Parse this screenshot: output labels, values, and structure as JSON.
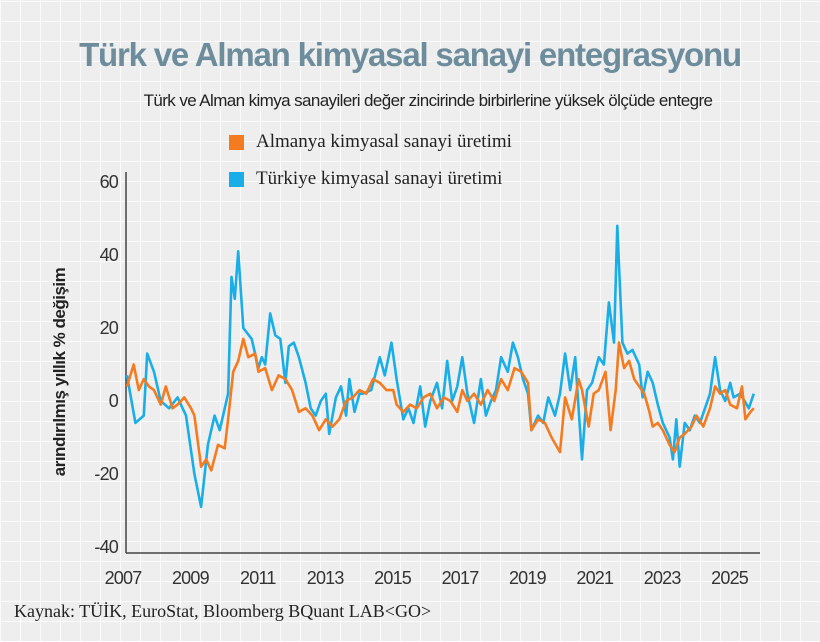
{
  "title": "Türk ve Alman kimyasal sanayi entegrasyonu",
  "subtitle": "Türk ve Alman kimya sanayileri değer zincirinde birbirlerine yüksek ölçüde entegre",
  "source": "Kaynak: TÜİK, EuroStat, Bloomberg BQuant LAB<GO>",
  "chart_data": {
    "type": "line",
    "title": "Türk ve Alman kimyasal sanayi entegrasyonu",
    "ylabel": "arındırılmış yıllık % değişim",
    "xlabel": "",
    "ylim": [
      -40,
      60
    ],
    "xlim": [
      2007,
      2025.6
    ],
    "yticks": [
      "60",
      "40",
      "20",
      "0",
      "-20",
      "-40"
    ],
    "ytick_values": [
      60,
      40,
      20,
      0,
      -20,
      -40
    ],
    "xticks": [
      "2007",
      "2009",
      "2011",
      "2013",
      "2015",
      "2017",
      "2019",
      "2021",
      "2023",
      "2025"
    ],
    "grid": false,
    "legend_position": "top-center",
    "series": [
      {
        "name": "Almanya kimyasal sanayi üretimi",
        "color": "#f47b20",
        "x": [
          2007.0,
          2007.2,
          2007.35,
          2007.5,
          2007.65,
          2007.8,
          2008.0,
          2008.15,
          2008.35,
          2008.5,
          2008.7,
          2008.9,
          2009.0,
          2009.2,
          2009.35,
          2009.5,
          2009.7,
          2009.9,
          2010.0,
          2010.15,
          2010.3,
          2010.45,
          2010.6,
          2010.8,
          2010.9,
          2011.1,
          2011.3,
          2011.5,
          2011.7,
          2011.9,
          2012.1,
          2012.3,
          2012.5,
          2012.7,
          2012.9,
          2013.1,
          2013.3,
          2013.5,
          2013.7,
          2013.9,
          2014.1,
          2014.3,
          2014.5,
          2014.7,
          2014.9,
          2015.0,
          2015.2,
          2015.4,
          2015.6,
          2015.8,
          2016.0,
          2016.2,
          2016.4,
          2016.6,
          2016.8,
          2016.95,
          2017.1,
          2017.3,
          2017.5,
          2017.7,
          2017.9,
          2018.1,
          2018.3,
          2018.5,
          2018.7,
          2018.9,
          2019.0,
          2019.2,
          2019.4,
          2019.6,
          2019.85,
          2020.0,
          2020.2,
          2020.4,
          2020.5,
          2020.7,
          2020.85,
          2021.0,
          2021.2,
          2021.35,
          2021.5,
          2021.6,
          2021.75,
          2021.9,
          2022.05,
          2022.2,
          2022.35,
          2022.5,
          2022.6,
          2022.75,
          2022.9,
          2023.1,
          2023.25,
          2023.4,
          2023.55,
          2023.75,
          2023.9,
          2024.1,
          2024.3,
          2024.45,
          2024.6,
          2024.75,
          2024.9,
          2025.1,
          2025.25,
          2025.35,
          2025.5,
          2025.6
        ],
        "values": [
          4,
          10,
          3,
          6,
          4,
          3,
          -1,
          4,
          -2,
          -1,
          1,
          -2,
          -4,
          -18,
          -16,
          -19,
          -12,
          -13,
          -5,
          8,
          11,
          17,
          12,
          13,
          8,
          9,
          3,
          7,
          6,
          3,
          -3,
          -2,
          -4,
          -8,
          -5,
          -7,
          -5,
          0,
          1,
          3,
          2,
          6,
          5,
          3,
          3,
          -1,
          -3,
          -1,
          -2,
          1,
          2,
          -2,
          1,
          0,
          -3,
          3,
          0,
          2,
          -1,
          3,
          0,
          6,
          3,
          9,
          8,
          5,
          -8,
          -5,
          -6,
          -10,
          -14,
          1,
          -5,
          6,
          3,
          -7,
          2,
          3,
          8,
          -8,
          3,
          16,
          9,
          11,
          6,
          4,
          2,
          -3,
          -7,
          -6,
          -8,
          -12,
          -14,
          -10,
          -9,
          -7,
          -4,
          -7,
          -2,
          4,
          2,
          3,
          -1,
          -2,
          4,
          -5,
          -3,
          -2
        ]
      },
      {
        "name": "Türkiye kimyasal sanayi üretimi",
        "color": "#1aaee8",
        "x": [
          2007.0,
          2007.25,
          2007.5,
          2007.6,
          2007.8,
          2008.0,
          2008.25,
          2008.5,
          2008.75,
          2009.0,
          2009.2,
          2009.4,
          2009.6,
          2009.75,
          2010.0,
          2010.1,
          2010.2,
          2010.3,
          2010.45,
          2010.7,
          2010.9,
          2011.0,
          2011.1,
          2011.25,
          2011.4,
          2011.55,
          2011.7,
          2011.8,
          2011.95,
          2012.1,
          2012.3,
          2012.45,
          2012.6,
          2012.75,
          2012.9,
          2013.0,
          2013.2,
          2013.35,
          2013.5,
          2013.6,
          2013.75,
          2013.9,
          2014.0,
          2014.25,
          2014.5,
          2014.65,
          2014.85,
          2015.0,
          2015.2,
          2015.35,
          2015.5,
          2015.7,
          2015.85,
          2016.0,
          2016.2,
          2016.35,
          2016.5,
          2016.65,
          2016.8,
          2016.95,
          2017.1,
          2017.3,
          2017.5,
          2017.65,
          2017.8,
          2017.95,
          2018.1,
          2018.3,
          2018.45,
          2018.6,
          2018.75,
          2018.9,
          2019.0,
          2019.2,
          2019.35,
          2019.5,
          2019.7,
          2019.85,
          2020.0,
          2020.15,
          2020.3,
          2020.5,
          2020.65,
          2020.8,
          2021.0,
          2021.15,
          2021.3,
          2021.45,
          2021.55,
          2021.7,
          2021.85,
          2022.0,
          2022.2,
          2022.3,
          2022.45,
          2022.6,
          2022.75,
          2022.9,
          2023.1,
          2023.2,
          2023.3,
          2023.4,
          2023.55,
          2023.7,
          2023.85,
          2024.0,
          2024.15,
          2024.3,
          2024.45,
          2024.6,
          2024.75,
          2024.9,
          2025.0,
          2025.2,
          2025.45,
          2025.6
        ],
        "values": [
          7,
          -6,
          -4,
          13,
          8,
          0,
          -2,
          1,
          -4,
          -20,
          -29,
          -12,
          -4,
          -8,
          2,
          34,
          28,
          41,
          20,
          17,
          9,
          12,
          10,
          24,
          18,
          17,
          5,
          15,
          16,
          12,
          5,
          -2,
          -4,
          0,
          2,
          -9,
          1,
          4,
          -4,
          6,
          -3,
          2,
          2,
          3,
          12,
          7,
          16,
          6,
          -5,
          -2,
          -6,
          4,
          -7,
          0,
          5,
          -2,
          11,
          0,
          4,
          12,
          2,
          -6,
          6,
          -4,
          0,
          3,
          12,
          8,
          16,
          12,
          6,
          2,
          -8,
          -4,
          -6,
          1,
          -4,
          2,
          13,
          3,
          12,
          -16,
          3,
          5,
          12,
          10,
          27,
          16,
          48,
          16,
          13,
          14,
          10,
          1,
          8,
          5,
          -1,
          -6,
          -10,
          -16,
          -5,
          -18,
          -6,
          -8,
          -4,
          -6,
          -2,
          2,
          12,
          3,
          0,
          5,
          1,
          2,
          -2,
          2
        ]
      }
    ]
  }
}
